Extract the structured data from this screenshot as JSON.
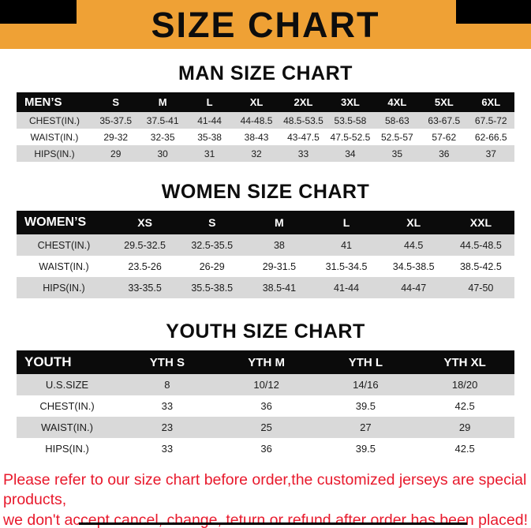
{
  "banner": {
    "title": "SIZE CHART",
    "bg_color": "#efa135"
  },
  "colors": {
    "header_bg": "#0b0b0b",
    "row_alt": "#d9d9d9",
    "footer_text": "#e8192c"
  },
  "tables": [
    {
      "heading": "MAN SIZE CHART",
      "header": [
        "MEN’S",
        "S",
        "M",
        "L",
        "XL",
        "2XL",
        "3XL",
        "4XL",
        "5XL",
        "6XL"
      ],
      "rows": [
        [
          "CHEST(IN.)",
          "35-37.5",
          "37.5-41",
          "41-44",
          "44-48.5",
          "48.5-53.5",
          "53.5-58",
          "58-63",
          "63-67.5",
          "67.5-72"
        ],
        [
          "WAIST(IN.)",
          "29-32",
          "32-35",
          "35-38",
          "38-43",
          "43-47.5",
          "47.5-52.5",
          "52.5-57",
          "57-62",
          "62-66.5"
        ],
        [
          "HIPS(IN.)",
          "29",
          "30",
          "31",
          "32",
          "33",
          "34",
          "35",
          "36",
          "37"
        ]
      ]
    },
    {
      "heading": "WOMEN SIZE CHART",
      "header": [
        "WOMEN’S",
        "XS",
        "S",
        "M",
        "L",
        "XL",
        "XXL"
      ],
      "rows": [
        [
          "CHEST(IN.)",
          "29.5-32.5",
          "32.5-35.5",
          "38",
          "41",
          "44.5",
          "44.5-48.5"
        ],
        [
          "WAIST(IN.)",
          "23.5-26",
          "26-29",
          "29-31.5",
          "31.5-34.5",
          "34.5-38.5",
          "38.5-42.5"
        ],
        [
          "HIPS(IN.)",
          "33-35.5",
          "35.5-38.5",
          "38.5-41",
          "41-44",
          "44-47",
          "47-50"
        ]
      ]
    },
    {
      "heading": "YOUTH SIZE CHART",
      "header": [
        "YOUTH",
        "YTH S",
        "YTH M",
        "YTH L",
        "YTH XL"
      ],
      "rows": [
        [
          "U.S.SIZE",
          "8",
          "10/12",
          "14/16",
          "18/20"
        ],
        [
          "CHEST(IN.)",
          "33",
          "36",
          "39.5",
          "42.5"
        ],
        [
          "WAIST(IN.)",
          "23",
          "25",
          "27",
          "29"
        ],
        [
          "HIPS(IN.)",
          "33",
          "36",
          "39.5",
          "42.5"
        ]
      ]
    }
  ],
  "footer": {
    "line1": "Please refer to our size chart before order,the customized jerseys are special products,",
    "line2": "we don't accept cancel, change, teturn or refund after order has been placed!"
  }
}
